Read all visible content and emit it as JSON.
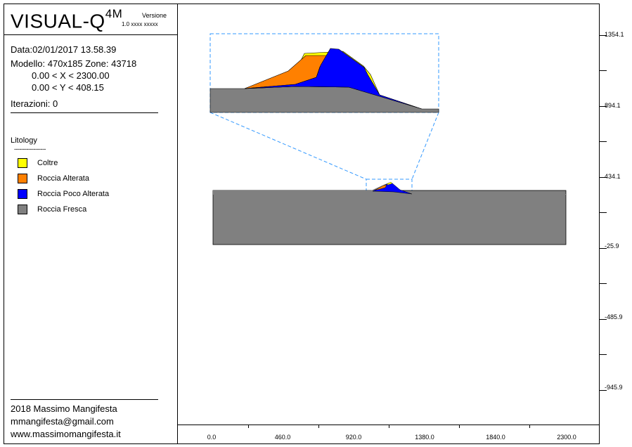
{
  "header": {
    "app_title": "VISUAL-Q",
    "app_title_sup": "4M",
    "version_label": "Versione",
    "version_value": "1.0 xxxx xxxxx"
  },
  "info": {
    "date": "Data:02/01/2017 13.58.39",
    "model": "Modello: 470x185   Zone: 43718",
    "x_range": "0.00 < X < 2300.00",
    "y_range": "0.00 < Y < 408.15",
    "iterations": "Iterazioni: 0"
  },
  "legend": {
    "title": "Litology",
    "separator": "------------------",
    "items": [
      {
        "label": "Coltre",
        "color": "#ffff00"
      },
      {
        "label": "Roccia Alterata",
        "color": "#ff8000"
      },
      {
        "label": "Roccia Poco Alterata",
        "color": "#0000ff"
      },
      {
        "label": "Roccia Fresca",
        "color": "#808080"
      }
    ]
  },
  "footer": {
    "year_author": "2018 Massimo Mangifesta",
    "email": "mmangifesta@gmail.com",
    "website": "www.massimomangifesta.it"
  },
  "axes": {
    "x_labels": [
      "0.0",
      "460.0",
      "920.0",
      "1380.0",
      "1840.0",
      "2300.0"
    ],
    "y_labels": [
      "1354.1",
      "894.1",
      "434.1",
      "-25.9",
      "-485.9",
      "-945.9"
    ]
  },
  "colors": {
    "zoom_box": "#3399ff",
    "fresca": "#808080",
    "poco_alterata": "#0000ff",
    "alterata": "#ff8000",
    "coltre": "#ffff00"
  }
}
